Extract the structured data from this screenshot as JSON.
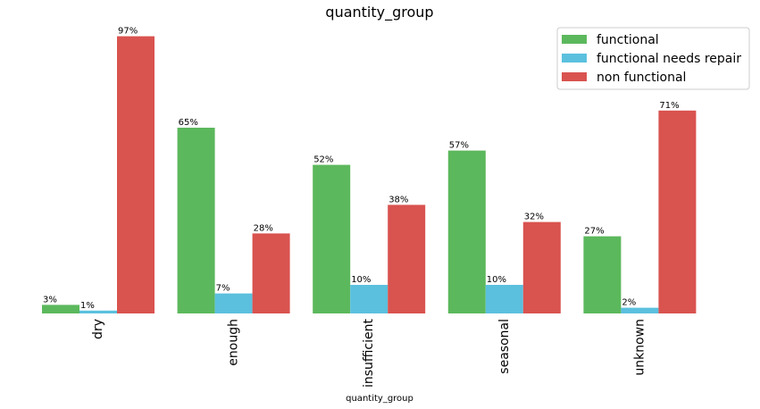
{
  "chart_data": {
    "type": "bar",
    "title": "quantity_group",
    "xlabel": "quantity_group",
    "ylabel": "",
    "ylim": [
      0,
      100
    ],
    "grid": false,
    "legend_position": "top-right",
    "categories": [
      "dry",
      "enough",
      "insufficient",
      "seasonal",
      "unknown"
    ],
    "series": [
      {
        "name": "functional",
        "color": "#5cb85c",
        "values": [
          3,
          65,
          52,
          57,
          27
        ],
        "labels": [
          "3%",
          "65%",
          "52%",
          "57%",
          "27%"
        ]
      },
      {
        "name": "functional needs repair",
        "color": "#5bc0de",
        "values": [
          1,
          7,
          10,
          10,
          2
        ],
        "labels": [
          "1%",
          "7%",
          "10%",
          "10%",
          "2%"
        ]
      },
      {
        "name": "non functional",
        "color": "#d9534f",
        "values": [
          97,
          28,
          38,
          32,
          71
        ],
        "labels": [
          "97%",
          "28%",
          "38%",
          "32%",
          "71%"
        ]
      }
    ]
  }
}
